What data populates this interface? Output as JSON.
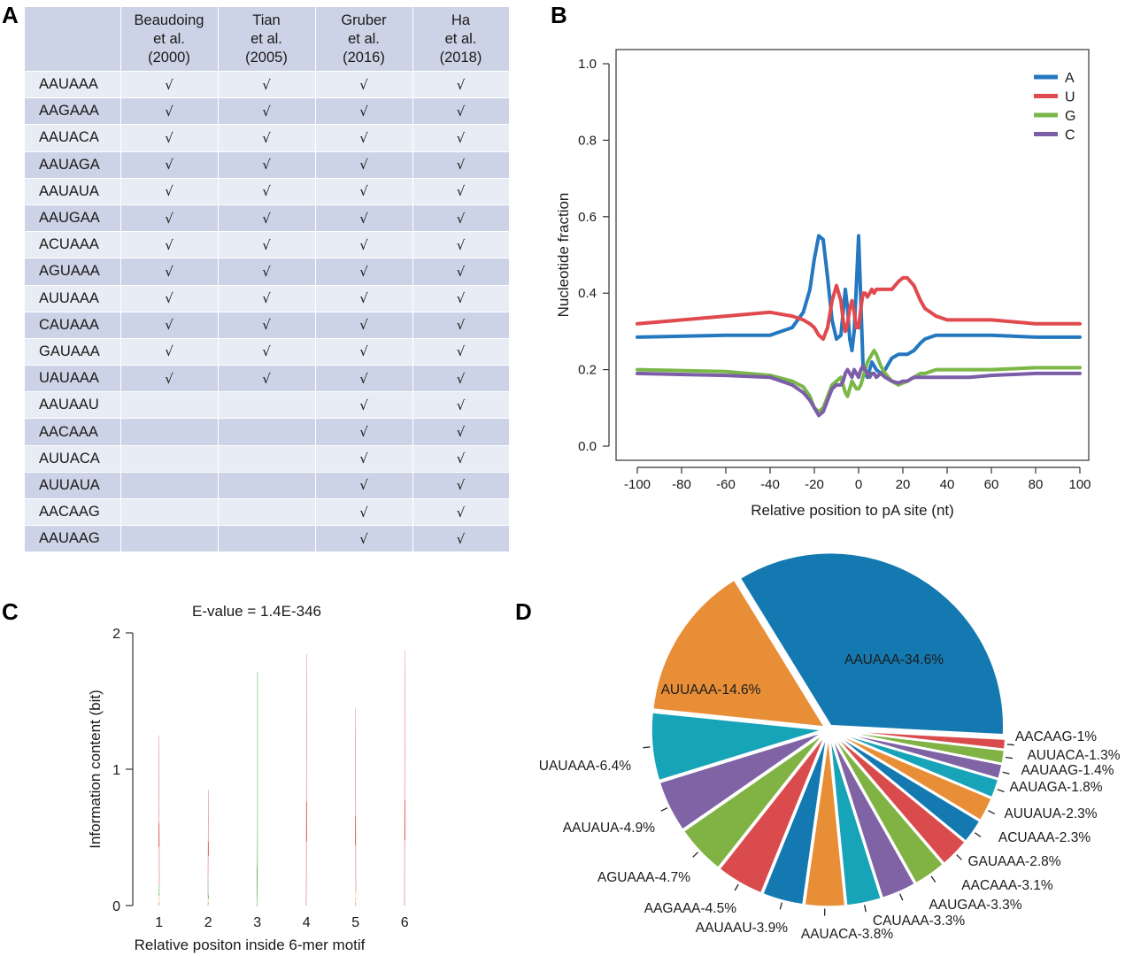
{
  "panels": {
    "a": "A",
    "b": "B",
    "c": "C",
    "d": "D"
  },
  "table": {
    "headers": [
      "",
      [
        "Beaudoing",
        "et al.",
        "(2000)"
      ],
      [
        "Tian",
        "et al.",
        "(2005)"
      ],
      [
        "Gruber",
        "et al.",
        "(2016)"
      ],
      [
        "Ha",
        "et al.",
        "(2018)"
      ]
    ],
    "check_symbol": "√",
    "rows": [
      {
        "motif": "AAUAAA",
        "checks": [
          true,
          true,
          true,
          true
        ]
      },
      {
        "motif": "AAGAAA",
        "checks": [
          true,
          true,
          true,
          true
        ]
      },
      {
        "motif": "AAUACA",
        "checks": [
          true,
          true,
          true,
          true
        ]
      },
      {
        "motif": "AAUAGA",
        "checks": [
          true,
          true,
          true,
          true
        ]
      },
      {
        "motif": "AAUAUA",
        "checks": [
          true,
          true,
          true,
          true
        ]
      },
      {
        "motif": "AAUGAA",
        "checks": [
          true,
          true,
          true,
          true
        ]
      },
      {
        "motif": "ACUAAA",
        "checks": [
          true,
          true,
          true,
          true
        ]
      },
      {
        "motif": "AGUAAA",
        "checks": [
          true,
          true,
          true,
          true
        ]
      },
      {
        "motif": "AUUAAA",
        "checks": [
          true,
          true,
          true,
          true
        ]
      },
      {
        "motif": "CAUAAA",
        "checks": [
          true,
          true,
          true,
          true
        ]
      },
      {
        "motif": "GAUAAA",
        "checks": [
          true,
          true,
          true,
          true
        ]
      },
      {
        "motif": "UAUAAA",
        "checks": [
          true,
          true,
          true,
          true
        ]
      },
      {
        "motif": "AAUAAU",
        "checks": [
          false,
          false,
          true,
          true
        ]
      },
      {
        "motif": "AACAAA",
        "checks": [
          false,
          false,
          true,
          true
        ]
      },
      {
        "motif": "AUUACA",
        "checks": [
          false,
          false,
          true,
          true
        ]
      },
      {
        "motif": "AUUAUA",
        "checks": [
          false,
          false,
          true,
          true
        ]
      },
      {
        "motif": "AACAAG",
        "checks": [
          false,
          false,
          true,
          true
        ]
      },
      {
        "motif": "AAUAAG",
        "checks": [
          false,
          false,
          true,
          true
        ]
      }
    ]
  },
  "chart_data": [
    {
      "type": "line",
      "xlabel": "Relative position to pA site (nt)",
      "ylabel": "Nucleotide fraction",
      "xlim": [
        -100,
        100
      ],
      "ylim": [
        0.0,
        1.0
      ],
      "xticks": [
        -100,
        -80,
        -60,
        -40,
        -20,
        0,
        20,
        40,
        60,
        80,
        100
      ],
      "yticks": [
        "0.0",
        "0.2",
        "0.4",
        "0.6",
        "0.8",
        "1.0"
      ],
      "legend_position": "top-right",
      "x": [
        -100,
        -60,
        -40,
        -30,
        -25,
        -22,
        -20,
        -18,
        -16,
        -14,
        -12,
        -10,
        -8,
        -7,
        -6,
        -5,
        -4,
        -3,
        -2,
        -1,
        0,
        1,
        2,
        3,
        4,
        5,
        6,
        7,
        8,
        10,
        12,
        15,
        18,
        20,
        22,
        25,
        28,
        30,
        35,
        40,
        50,
        60,
        80,
        100
      ],
      "series": [
        {
          "name": "A",
          "color": "#2478c0",
          "values": [
            0.285,
            0.29,
            0.29,
            0.31,
            0.35,
            0.41,
            0.49,
            0.55,
            0.54,
            0.44,
            0.33,
            0.28,
            0.29,
            0.35,
            0.41,
            0.36,
            0.28,
            0.25,
            0.3,
            0.42,
            0.55,
            0.38,
            0.21,
            0.19,
            0.18,
            0.2,
            0.22,
            0.21,
            0.2,
            0.19,
            0.2,
            0.23,
            0.24,
            0.24,
            0.24,
            0.25,
            0.27,
            0.28,
            0.29,
            0.29,
            0.29,
            0.29,
            0.285,
            0.285
          ]
        },
        {
          "name": "U",
          "color": "#e04a4e",
          "values": [
            0.32,
            0.34,
            0.35,
            0.34,
            0.33,
            0.32,
            0.31,
            0.29,
            0.28,
            0.31,
            0.38,
            0.42,
            0.38,
            0.33,
            0.3,
            0.32,
            0.36,
            0.38,
            0.35,
            0.31,
            0.31,
            0.36,
            0.4,
            0.4,
            0.39,
            0.4,
            0.41,
            0.4,
            0.41,
            0.41,
            0.41,
            0.41,
            0.43,
            0.44,
            0.44,
            0.42,
            0.38,
            0.36,
            0.34,
            0.33,
            0.33,
            0.33,
            0.32,
            0.32
          ]
        },
        {
          "name": "G",
          "color": "#7ab648",
          "values": [
            0.2,
            0.195,
            0.185,
            0.17,
            0.155,
            0.13,
            0.1,
            0.09,
            0.1,
            0.13,
            0.16,
            0.17,
            0.18,
            0.16,
            0.14,
            0.13,
            0.15,
            0.17,
            0.16,
            0.15,
            0.15,
            0.16,
            0.18,
            0.2,
            0.22,
            0.23,
            0.24,
            0.25,
            0.24,
            0.21,
            0.19,
            0.17,
            0.16,
            0.165,
            0.17,
            0.18,
            0.19,
            0.19,
            0.2,
            0.2,
            0.2,
            0.2,
            0.205,
            0.205
          ]
        },
        {
          "name": "C",
          "color": "#7c5ea8",
          "values": [
            0.19,
            0.185,
            0.18,
            0.16,
            0.14,
            0.12,
            0.1,
            0.08,
            0.09,
            0.12,
            0.15,
            0.16,
            0.16,
            0.17,
            0.19,
            0.2,
            0.19,
            0.18,
            0.2,
            0.19,
            0.18,
            0.2,
            0.21,
            0.2,
            0.19,
            0.18,
            0.19,
            0.19,
            0.18,
            0.19,
            0.18,
            0.17,
            0.165,
            0.17,
            0.17,
            0.18,
            0.18,
            0.18,
            0.18,
            0.18,
            0.18,
            0.185,
            0.19,
            0.19
          ]
        }
      ]
    },
    {
      "type": "sequence-logo",
      "title": "E-value = 1.4E-346",
      "xlabel": "Relative positon inside 6-mer motif",
      "ylabel": "Information content (bit)",
      "ylim": [
        0,
        2
      ],
      "yticks": [
        "0",
        "1",
        "2"
      ],
      "positions": [
        {
          "label": "1",
          "letters": [
            {
              "letter": "C",
              "height": 0.02
            },
            {
              "letter": "G",
              "height": 0.05
            },
            {
              "letter": "U",
              "height": 0.08
            },
            {
              "letter": "A",
              "height": 1.15
            }
          ]
        },
        {
          "label": "2",
          "letters": [
            {
              "letter": "C",
              "height": 0.02
            },
            {
              "letter": "G",
              "height": 0.03
            },
            {
              "letter": "U",
              "height": 0.15
            },
            {
              "letter": "A",
              "height": 0.68
            }
          ]
        },
        {
          "label": "3",
          "letters": [
            {
              "letter": "A",
              "height": 0.01
            },
            {
              "letter": "U",
              "height": 1.78
            }
          ]
        },
        {
          "label": "4",
          "letters": [
            {
              "letter": "A",
              "height": 1.93
            }
          ]
        },
        {
          "label": "5",
          "letters": [
            {
              "letter": "C",
              "height": 0.02
            },
            {
              "letter": "G",
              "height": 0.08
            },
            {
              "letter": "A",
              "height": 1.41
            }
          ]
        },
        {
          "label": "6",
          "letters": [
            {
              "letter": "A",
              "height": 1.96
            }
          ]
        }
      ],
      "letter_colors": {
        "A": "#cc0000",
        "U": "#008000",
        "G": "#ffb300",
        "C": "#0000cc"
      }
    },
    {
      "type": "pie",
      "slices": [
        {
          "label": "AAUAAA-34.6%",
          "value": 34.6,
          "color": "#1479b0"
        },
        {
          "label": "AUUAAA-14.6%",
          "value": 14.6,
          "color": "#e88e37"
        },
        {
          "label": "UAUAAA-6.4%",
          "value": 6.4,
          "color": "#17a3b8"
        },
        {
          "label": "AAUAUA-4.9%",
          "value": 4.9,
          "color": "#7f63a5"
        },
        {
          "label": "AGUAAA-4.7%",
          "value": 4.7,
          "color": "#80b344"
        },
        {
          "label": "AAGAAA-4.5%",
          "value": 4.5,
          "color": "#d94b4c"
        },
        {
          "label": "AAUAAU-3.9%",
          "value": 3.9,
          "color": "#1479b0"
        },
        {
          "label": "AAUACA-3.8%",
          "value": 3.8,
          "color": "#e88e37"
        },
        {
          "label": "CAUAAA-3.3%",
          "value": 3.3,
          "color": "#17a3b8"
        },
        {
          "label": "AAUGAA-3.3%",
          "value": 3.3,
          "color": "#7f63a5"
        },
        {
          "label": "AACAAA-3.1%",
          "value": 3.1,
          "color": "#80b344"
        },
        {
          "label": "GAUAAA-2.8%",
          "value": 2.8,
          "color": "#d94b4c"
        },
        {
          "label": "ACUAAA-2.3%",
          "value": 2.3,
          "color": "#1479b0"
        },
        {
          "label": "AUUAUA-2.3%",
          "value": 2.3,
          "color": "#e88e37"
        },
        {
          "label": "AAUAGA-1.8%",
          "value": 1.8,
          "color": "#17a3b8"
        },
        {
          "label": "AAUAAG-1.4%",
          "value": 1.4,
          "color": "#7f63a5"
        },
        {
          "label": "AUUACA-1.3%",
          "value": 1.3,
          "color": "#80b344"
        },
        {
          "label": "AACAAG-1%",
          "value": 1.0,
          "color": "#d94b4c"
        }
      ]
    }
  ]
}
